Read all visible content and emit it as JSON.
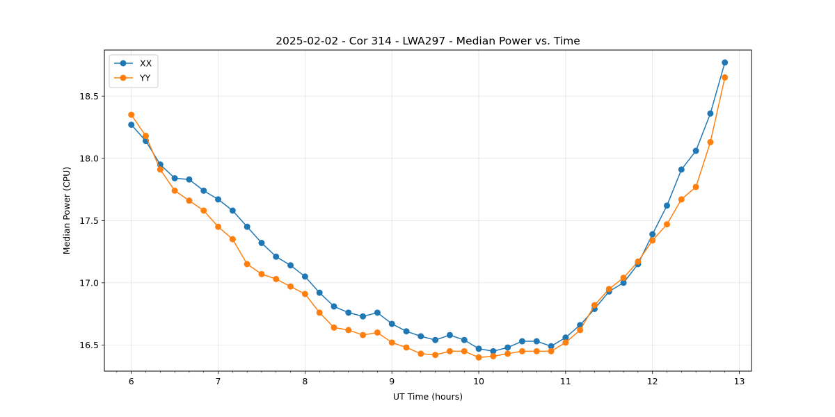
{
  "chart_data": {
    "type": "line",
    "title": "2025-02-02 - Cor 314 - LWA297 - Median Power vs. Time",
    "xlabel": "UT Time (hours)",
    "ylabel": "Median Power (CPU)",
    "xlim": [
      5.69,
      13.14
    ],
    "ylim": [
      16.29,
      18.87
    ],
    "xticks": [
      6,
      7,
      8,
      9,
      10,
      11,
      12,
      13
    ],
    "xtick_labels": [
      "6",
      "7",
      "8",
      "9",
      "10",
      "11",
      "12",
      "13"
    ],
    "yticks": [
      16.5,
      17.0,
      17.5,
      18.0,
      18.5
    ],
    "ytick_labels": [
      "16.5",
      "17.0",
      "17.5",
      "18.0",
      "18.5"
    ],
    "grid": true,
    "legend_position": "top-left",
    "x": [
      6.0,
      6.1667,
      6.3333,
      6.5,
      6.6667,
      6.8333,
      7.0,
      7.1667,
      7.3333,
      7.5,
      7.6667,
      7.8333,
      8.0,
      8.1667,
      8.3333,
      8.5,
      8.6667,
      8.8333,
      9.0,
      9.1667,
      9.3333,
      9.5,
      9.6667,
      9.8333,
      10.0,
      10.1667,
      10.3333,
      10.5,
      10.6667,
      10.8333,
      11.0,
      11.1667,
      11.3333,
      11.5,
      11.6667,
      11.8333,
      12.0,
      12.1667,
      12.3333,
      12.5,
      12.6667,
      12.8333
    ],
    "series": [
      {
        "name": "XX",
        "color": "#1f77b4",
        "values": [
          18.27,
          18.14,
          17.95,
          17.84,
          17.83,
          17.74,
          17.67,
          17.58,
          17.45,
          17.32,
          17.21,
          17.14,
          17.05,
          16.92,
          16.81,
          16.76,
          16.73,
          16.76,
          16.67,
          16.61,
          16.57,
          16.54,
          16.58,
          16.54,
          16.47,
          16.45,
          16.48,
          16.53,
          16.53,
          16.49,
          16.56,
          16.66,
          16.79,
          16.93,
          17.0,
          17.15,
          17.39,
          17.62,
          17.91,
          18.06,
          18.36,
          18.77
        ]
      },
      {
        "name": "YY",
        "color": "#ff7f0e",
        "values": [
          18.35,
          18.18,
          17.91,
          17.74,
          17.66,
          17.58,
          17.45,
          17.35,
          17.15,
          17.07,
          17.03,
          16.97,
          16.91,
          16.76,
          16.64,
          16.62,
          16.58,
          16.6,
          16.52,
          16.48,
          16.43,
          16.42,
          16.45,
          16.45,
          16.4,
          16.41,
          16.43,
          16.45,
          16.45,
          16.45,
          16.52,
          16.62,
          16.82,
          16.95,
          17.04,
          17.17,
          17.34,
          17.47,
          17.67,
          17.77,
          18.13,
          18.65
        ]
      }
    ]
  }
}
